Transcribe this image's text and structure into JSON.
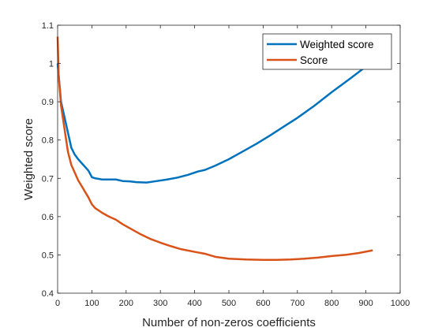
{
  "chart_data": {
    "type": "line",
    "title": "",
    "xlabel": "Number of non-zeros coefficients",
    "ylabel": "Weighted score",
    "xlim": [
      0,
      1000
    ],
    "ylim": [
      0.4,
      1.1
    ],
    "xticks": [
      0,
      100,
      200,
      300,
      400,
      500,
      600,
      700,
      800,
      900,
      1000
    ],
    "yticks": [
      0.4,
      0.5,
      0.6,
      0.7,
      0.8,
      0.9,
      1,
      1.1
    ],
    "grid": false,
    "legend_position": "top-right",
    "series": [
      {
        "name": "Weighted score",
        "color": "#0072BD",
        "x": [
          0,
          10,
          20,
          30,
          40,
          50,
          60,
          70,
          80,
          90,
          100,
          110,
          130,
          150,
          170,
          190,
          210,
          230,
          260,
          290,
          320,
          350,
          380,
          410,
          430,
          460,
          500,
          540,
          580,
          620,
          660,
          700,
          750,
          800,
          850,
          900,
          920
        ],
        "y": [
          1.0,
          0.9,
          0.86,
          0.82,
          0.78,
          0.762,
          0.75,
          0.74,
          0.73,
          0.72,
          0.703,
          0.7,
          0.697,
          0.697,
          0.697,
          0.693,
          0.692,
          0.69,
          0.689,
          0.693,
          0.697,
          0.702,
          0.709,
          0.718,
          0.722,
          0.733,
          0.75,
          0.77,
          0.79,
          0.812,
          0.835,
          0.858,
          0.89,
          0.925,
          0.958,
          0.992,
          1.0
        ]
      },
      {
        "name": "Score",
        "color": "#D95319",
        "x": [
          0,
          3,
          10,
          20,
          30,
          40,
          50,
          60,
          70,
          80,
          90,
          100,
          110,
          130,
          150,
          170,
          190,
          210,
          240,
          270,
          300,
          330,
          360,
          400,
          430,
          460,
          500,
          550,
          600,
          640,
          680,
          720,
          760,
          800,
          840,
          880,
          920
        ],
        "y": [
          1.07,
          0.97,
          0.89,
          0.83,
          0.77,
          0.735,
          0.715,
          0.695,
          0.68,
          0.665,
          0.65,
          0.632,
          0.622,
          0.61,
          0.6,
          0.592,
          0.58,
          0.57,
          0.555,
          0.542,
          0.532,
          0.523,
          0.515,
          0.508,
          0.503,
          0.495,
          0.49,
          0.488,
          0.487,
          0.487,
          0.488,
          0.49,
          0.493,
          0.497,
          0.5,
          0.505,
          0.512
        ]
      }
    ]
  }
}
